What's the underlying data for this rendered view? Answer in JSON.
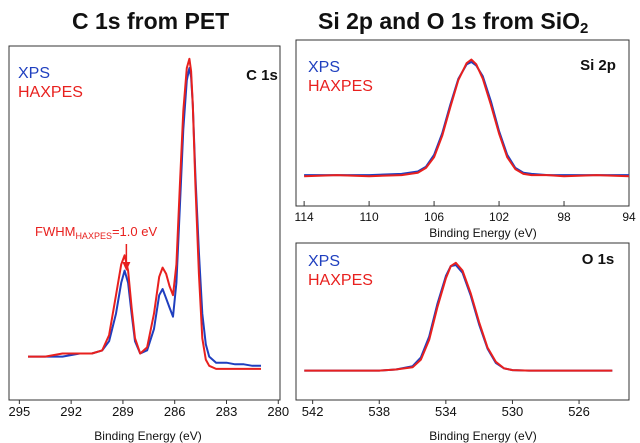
{
  "titles": {
    "left": "C 1s from PET",
    "right_main": "Si 2p and O 1s from SiO",
    "right_sub": "2"
  },
  "colors": {
    "xps": "#1f3fbf",
    "haxpes": "#e8201e"
  },
  "chart_data": [
    {
      "type": "line",
      "panel_label": "C 1s",
      "xlabel": "Binding Energy (eV)",
      "xlim": [
        295.6,
        279.9
      ],
      "ylim": [
        0,
        1.0
      ],
      "x_ticks": [
        295,
        292,
        289,
        286,
        283,
        280
      ],
      "legend": [
        "XPS",
        "HAXPES"
      ],
      "legend_position": "top-left",
      "annotation": {
        "text_main": "FWHM",
        "text_sub": "HAXPES",
        "text_tail": "=1.0 eV",
        "x": 288.8,
        "y": 0.55
      },
      "series": [
        {
          "name": "XPS",
          "x": [
            294.5,
            293.5,
            292.5,
            291.5,
            290.8,
            290.2,
            289.8,
            289.4,
            289.1,
            288.9,
            288.7,
            288.5,
            288.3,
            288.0,
            287.6,
            287.2,
            286.9,
            286.7,
            286.5,
            286.3,
            286.1,
            285.9,
            285.7,
            285.5,
            285.3,
            285.15,
            285.05,
            284.95,
            284.8,
            284.6,
            284.4,
            284.2,
            284.0,
            283.6,
            283.0,
            282.5,
            282.0,
            281.5,
            281.0
          ],
          "y": [
            0.06,
            0.06,
            0.06,
            0.07,
            0.07,
            0.08,
            0.11,
            0.2,
            0.3,
            0.34,
            0.3,
            0.2,
            0.11,
            0.07,
            0.08,
            0.15,
            0.26,
            0.28,
            0.25,
            0.22,
            0.19,
            0.3,
            0.55,
            0.8,
            0.96,
            1.0,
            0.97,
            0.88,
            0.65,
            0.4,
            0.2,
            0.1,
            0.06,
            0.04,
            0.04,
            0.035,
            0.035,
            0.03,
            0.03
          ]
        },
        {
          "name": "HAXPES",
          "x": [
            294.5,
            293.5,
            292.5,
            291.5,
            290.8,
            290.2,
            289.8,
            289.4,
            289.1,
            288.9,
            288.7,
            288.5,
            288.3,
            288.0,
            287.6,
            287.2,
            286.9,
            286.7,
            286.5,
            286.3,
            286.1,
            285.9,
            285.7,
            285.5,
            285.3,
            285.15,
            285.05,
            284.95,
            284.8,
            284.6,
            284.4,
            284.2,
            284.0,
            283.6,
            283.0,
            282.5,
            282.0,
            281.5,
            281.0
          ],
          "y": [
            0.06,
            0.06,
            0.07,
            0.07,
            0.07,
            0.08,
            0.13,
            0.26,
            0.36,
            0.39,
            0.34,
            0.22,
            0.12,
            0.07,
            0.09,
            0.2,
            0.32,
            0.35,
            0.33,
            0.29,
            0.26,
            0.36,
            0.62,
            0.86,
            1.0,
            1.03,
            0.99,
            0.88,
            0.62,
            0.33,
            0.12,
            0.05,
            0.03,
            0.02,
            0.02,
            0.02,
            0.02,
            0.02,
            0.02
          ]
        }
      ]
    },
    {
      "type": "line",
      "panel_label": "Si 2p",
      "xlabel": "Binding Energy (eV)",
      "xlim": [
        114.5,
        94
      ],
      "ylim": [
        0,
        1.0
      ],
      "x_ticks": [
        114,
        110,
        106,
        102,
        98,
        94
      ],
      "legend": [
        "XPS",
        "HAXPES"
      ],
      "legend_position": "top-left",
      "series": [
        {
          "name": "XPS",
          "x": [
            114,
            112,
            110,
            108,
            107,
            106.5,
            106,
            105.5,
            105,
            104.5,
            104,
            103.7,
            103.4,
            103,
            102.5,
            102,
            101.5,
            101,
            100.5,
            100,
            99,
            98,
            96,
            94
          ],
          "y": [
            0.05,
            0.05,
            0.05,
            0.06,
            0.08,
            0.12,
            0.22,
            0.4,
            0.64,
            0.86,
            0.98,
            1.0,
            0.97,
            0.88,
            0.67,
            0.42,
            0.22,
            0.11,
            0.07,
            0.06,
            0.05,
            0.05,
            0.05,
            0.05
          ]
        },
        {
          "name": "HAXPES",
          "x": [
            114,
            112,
            110,
            108,
            107,
            106.5,
            106,
            105.5,
            105,
            104.5,
            104,
            103.7,
            103.4,
            103,
            102.5,
            102,
            101.5,
            101,
            100.5,
            100,
            99,
            98,
            96,
            94
          ],
          "y": [
            0.04,
            0.05,
            0.04,
            0.05,
            0.07,
            0.11,
            0.2,
            0.38,
            0.62,
            0.85,
            0.99,
            1.02,
            0.98,
            0.86,
            0.64,
            0.4,
            0.2,
            0.1,
            0.06,
            0.05,
            0.05,
            0.04,
            0.05,
            0.04
          ]
        }
      ]
    },
    {
      "type": "line",
      "panel_label": "O 1s",
      "xlabel": "Binding Energy (eV)",
      "xlim": [
        543,
        523
      ],
      "ylim": [
        0,
        1.0
      ],
      "x_ticks": [
        542,
        538,
        534,
        530,
        526
      ],
      "legend": [
        "XPS",
        "HAXPES"
      ],
      "legend_position": "top-left",
      "series": [
        {
          "name": "XPS",
          "x": [
            542.5,
            540,
            538,
            537,
            536,
            535.5,
            535,
            534.5,
            534,
            533.7,
            533.4,
            533,
            532.5,
            532,
            531.5,
            531,
            530.5,
            530,
            529,
            528,
            526,
            524
          ],
          "y": [
            0.04,
            0.04,
            0.04,
            0.05,
            0.08,
            0.16,
            0.35,
            0.65,
            0.9,
            0.99,
            1.0,
            0.93,
            0.72,
            0.46,
            0.24,
            0.11,
            0.06,
            0.045,
            0.04,
            0.04,
            0.04,
            0.04
          ]
        },
        {
          "name": "HAXPES",
          "x": [
            542.5,
            540,
            538,
            537,
            536,
            535.5,
            535,
            534.5,
            534,
            533.7,
            533.4,
            533,
            532.5,
            532,
            531.5,
            531,
            530.5,
            530,
            529,
            528,
            526,
            524
          ],
          "y": [
            0.04,
            0.04,
            0.04,
            0.05,
            0.07,
            0.14,
            0.32,
            0.62,
            0.88,
            0.99,
            1.02,
            0.95,
            0.74,
            0.48,
            0.25,
            0.12,
            0.06,
            0.045,
            0.04,
            0.04,
            0.04,
            0.04
          ]
        }
      ]
    }
  ]
}
